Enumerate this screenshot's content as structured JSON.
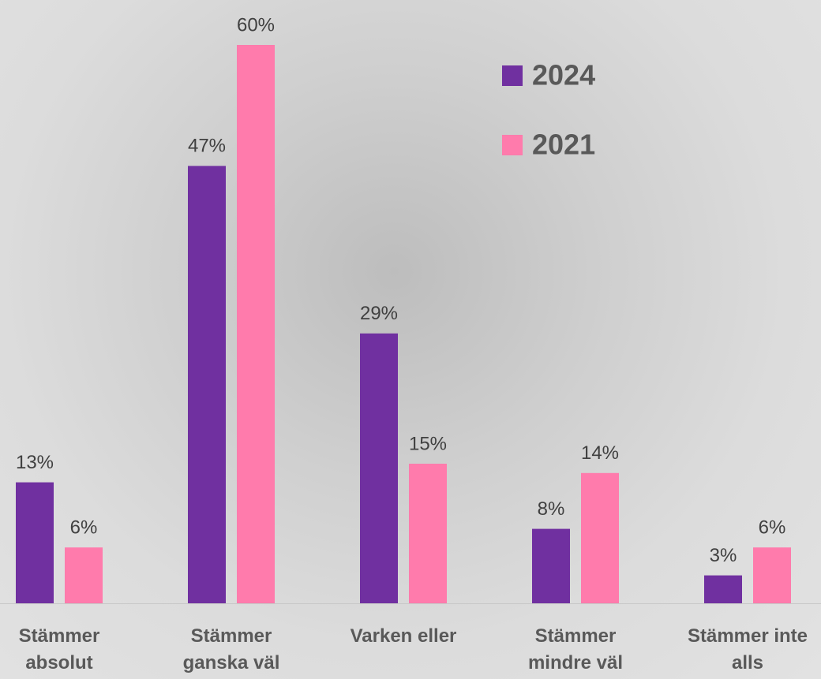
{
  "chart_data": {
    "type": "bar",
    "categories": [
      "Stämmer absolut",
      "Stämmer ganska väl",
      "Varken eller",
      "Stämmer mindre väl",
      "Stämmer inte alls"
    ],
    "series": [
      {
        "name": "2024",
        "color": "#7030a0",
        "values": [
          13,
          47,
          29,
          8,
          3
        ],
        "value_labels": [
          "13%",
          "47%",
          "29%",
          "8%",
          "3%"
        ]
      },
      {
        "name": "2021",
        "color": "#ff7bac",
        "values": [
          6,
          60,
          15,
          14,
          6
        ],
        "value_labels": [
          "6%",
          "60%",
          "15%",
          "14%",
          "6%"
        ]
      }
    ],
    "legend": "upper-right"
  }
}
